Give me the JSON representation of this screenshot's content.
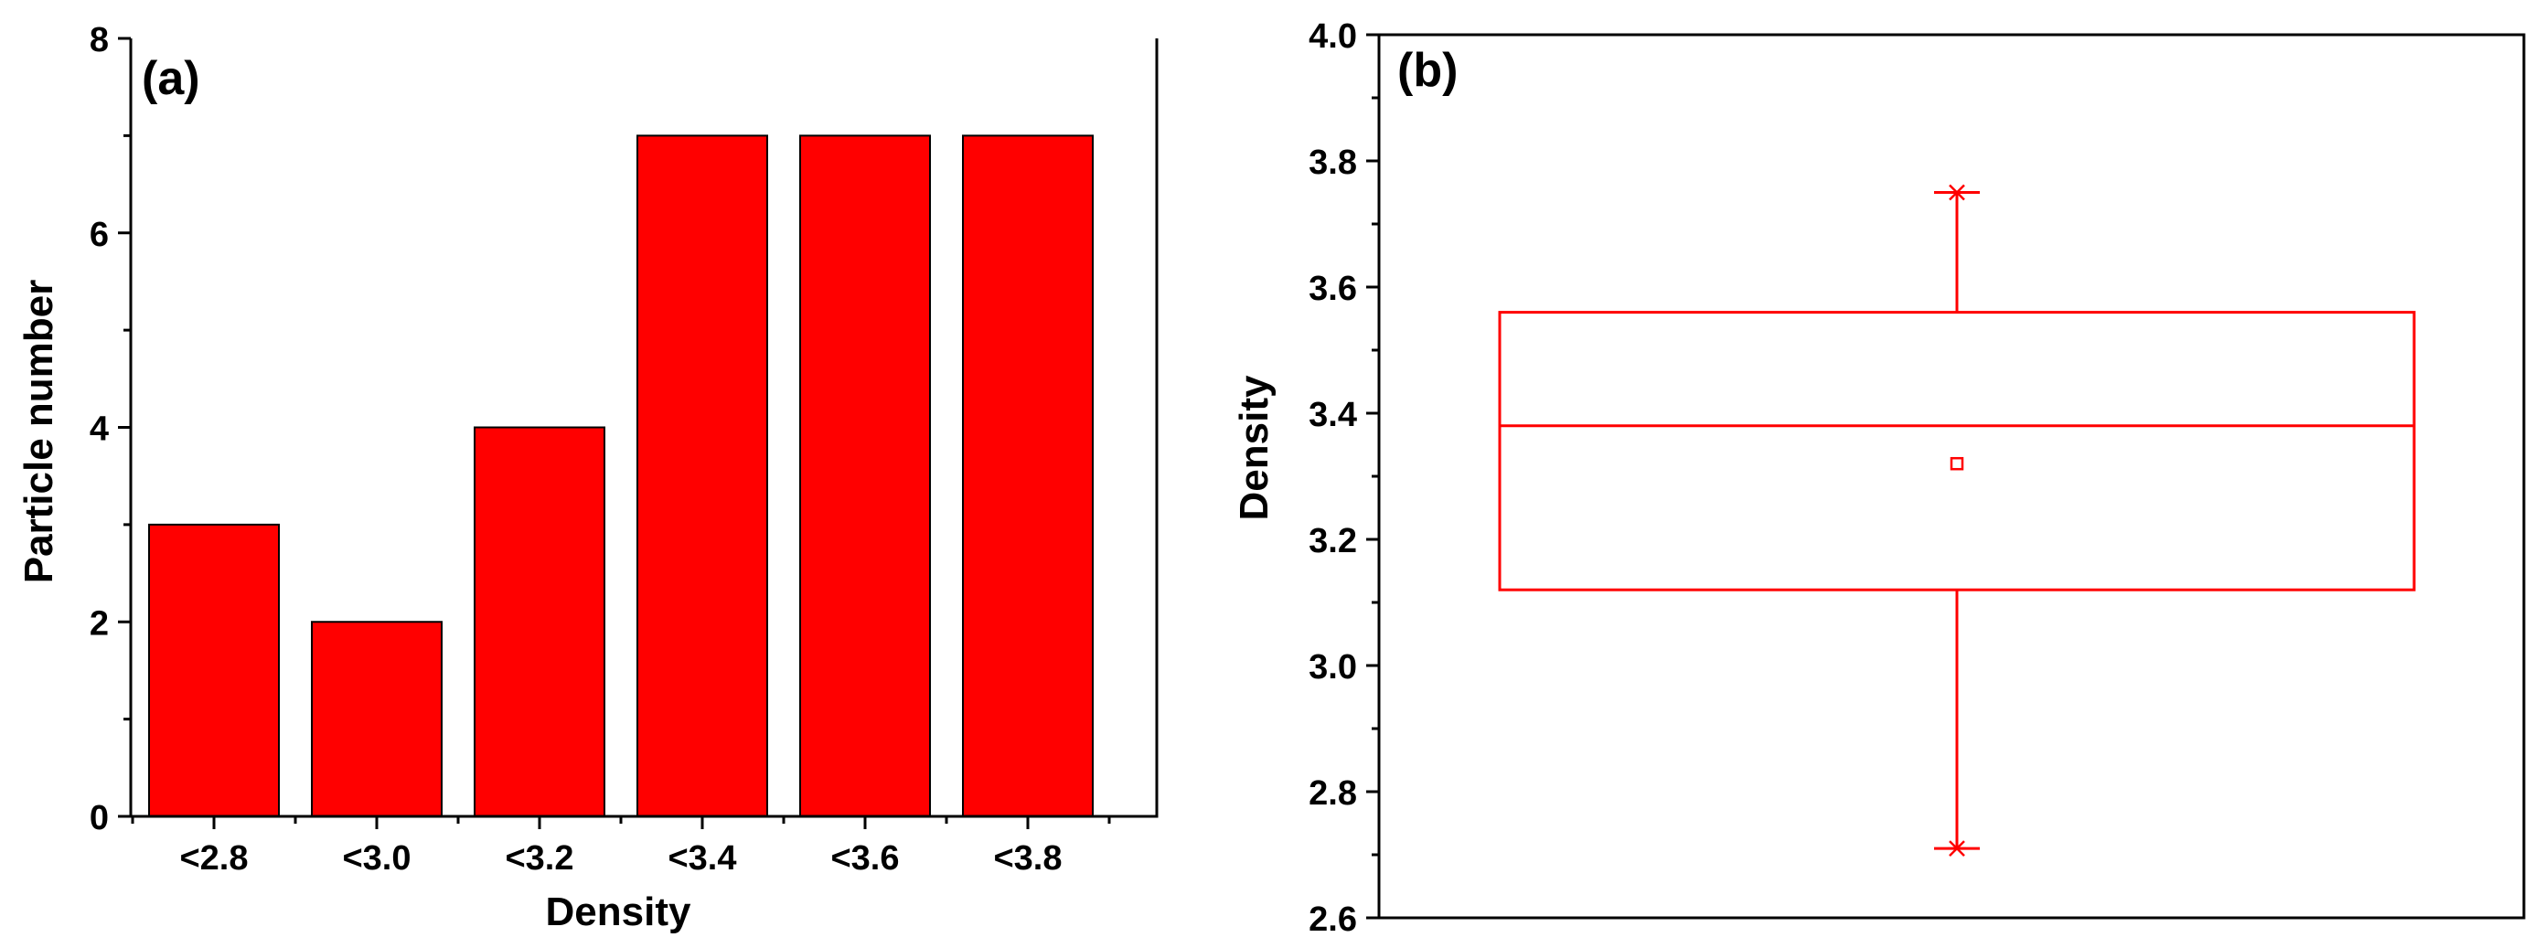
{
  "chart_data": [
    {
      "panel": "(a)",
      "type": "bar",
      "title": "",
      "xlabel": "Density",
      "ylabel": "Particle number",
      "categories": [
        "<2.8",
        "<3.0",
        "<3.2",
        "<3.4",
        "<3.6",
        "<3.8"
      ],
      "values": [
        3,
        2,
        4,
        7,
        7,
        7
      ],
      "ylim": [
        0,
        8
      ],
      "yticks": [
        "0",
        "2",
        "4",
        "6",
        "8"
      ],
      "grid": false,
      "legend": "none",
      "colors": {
        "bar": "#ff0000",
        "edge": "#000000"
      }
    },
    {
      "panel": "(b)",
      "type": "box",
      "title": "",
      "xlabel": "",
      "ylabel": "Density",
      "ylim": [
        2.6,
        4.0
      ],
      "yticks": [
        "2.6",
        "2.8",
        "3.0",
        "3.2",
        "3.4",
        "3.6",
        "3.8",
        "4.0"
      ],
      "box": {
        "q1": 3.12,
        "median": 3.38,
        "q3": 3.56,
        "mean": 3.32,
        "whisker_low": 2.71,
        "whisker_high": 3.75,
        "min": 2.71,
        "max": 3.75
      },
      "grid": false,
      "legend": "none",
      "colors": {
        "box": "#ff0000"
      }
    }
  ]
}
